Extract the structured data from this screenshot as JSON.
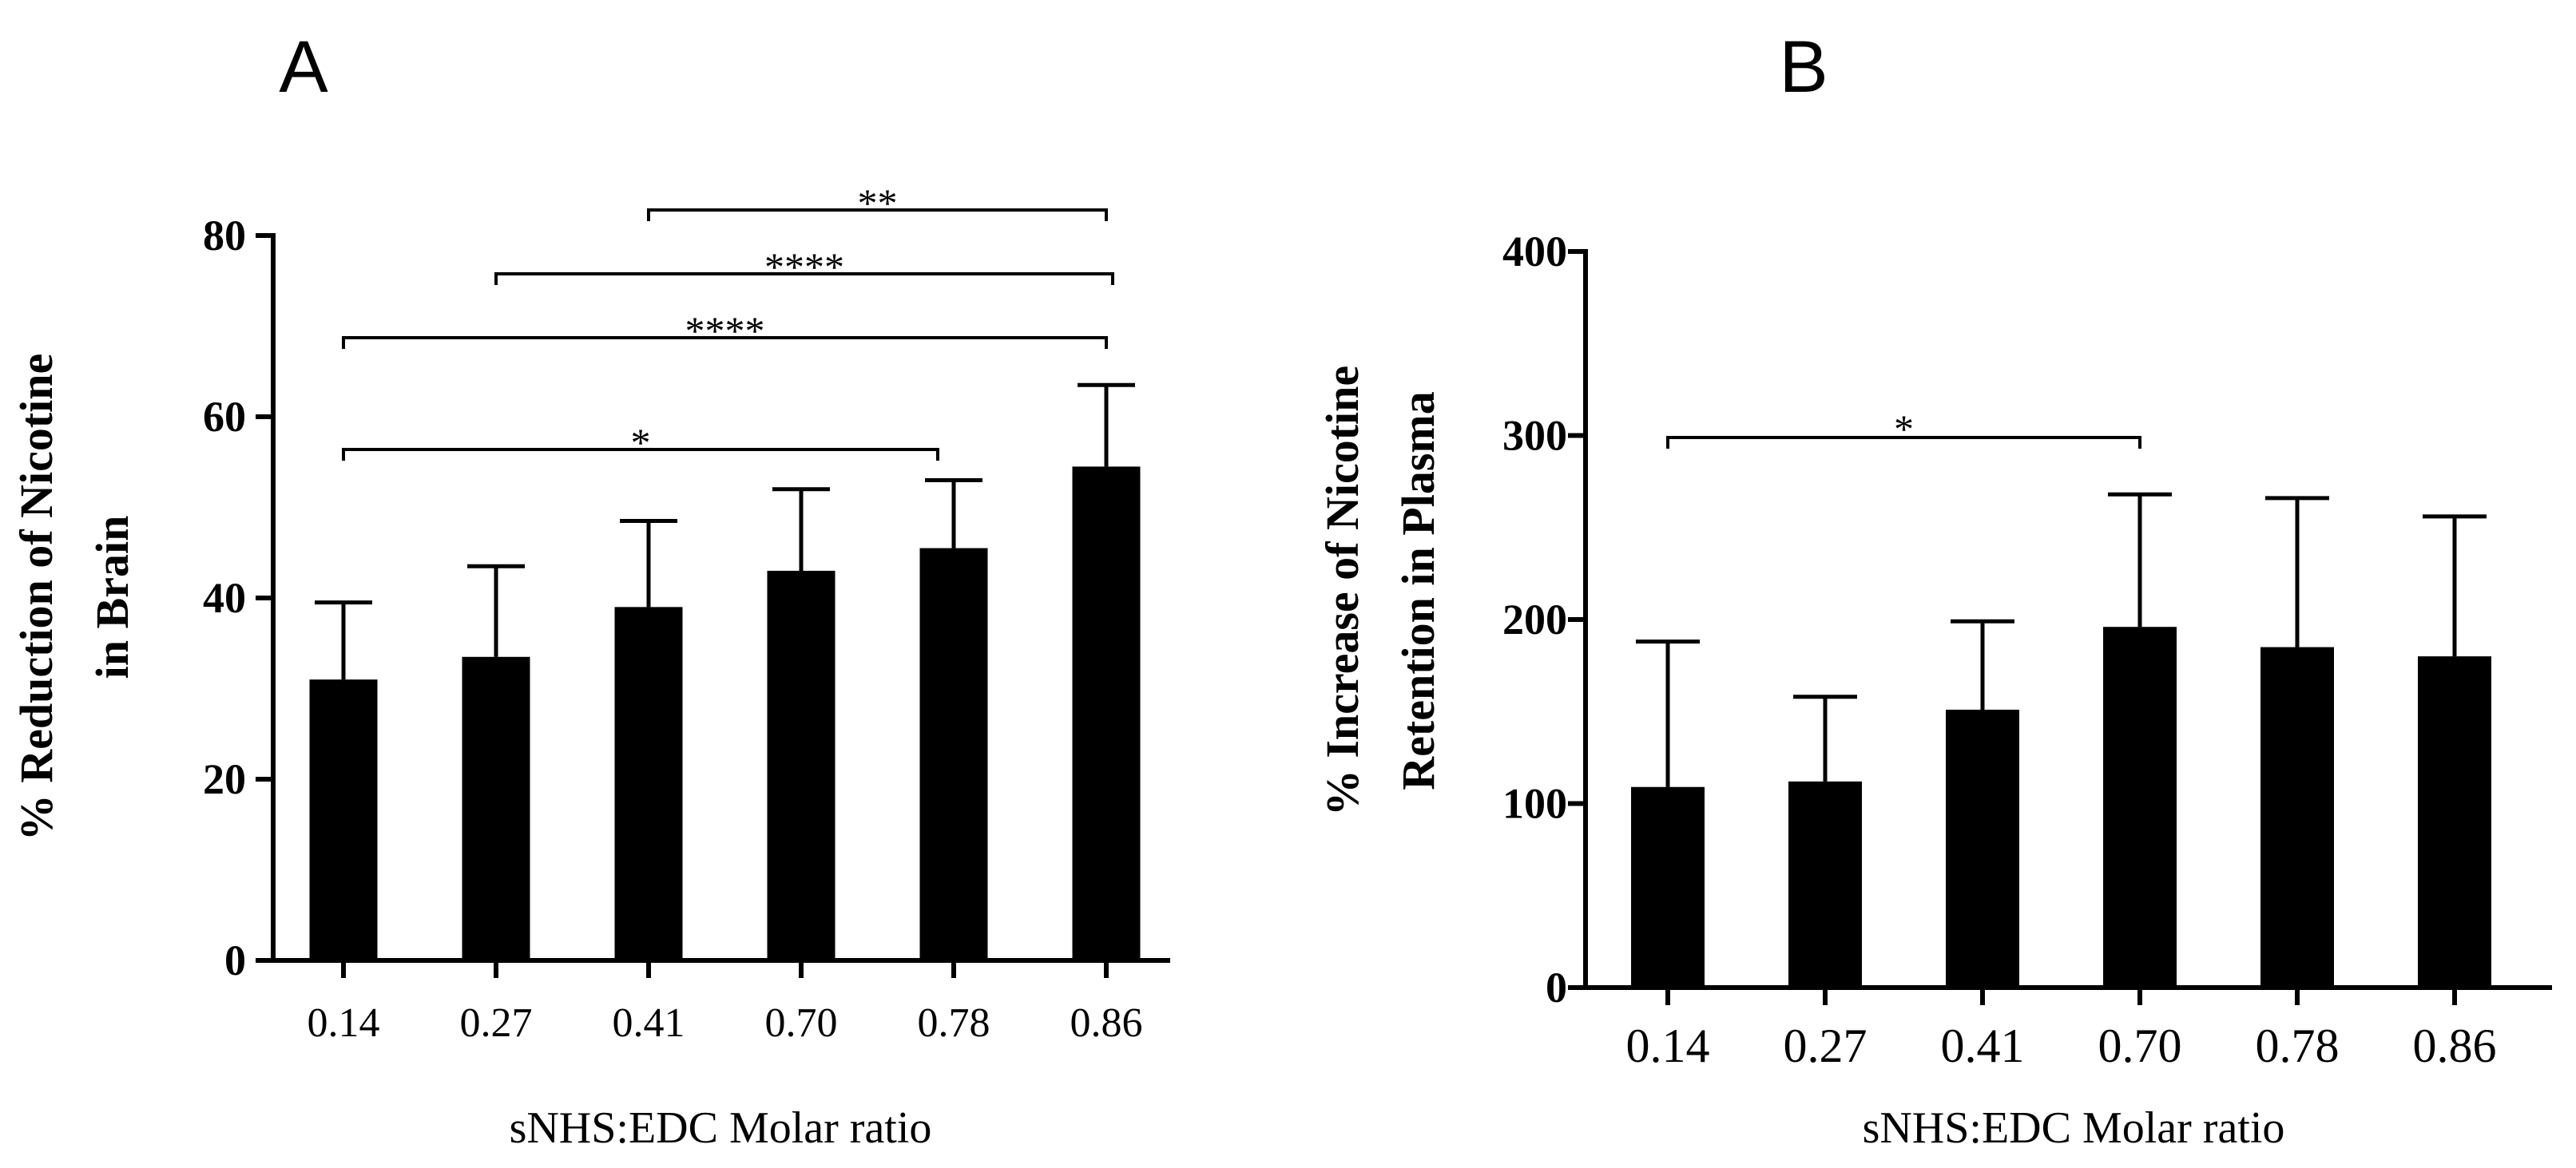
{
  "chart_data": [
    {
      "id": "A",
      "type": "bar",
      "panel_label": "A",
      "title": "",
      "ylabel_lines": [
        "% Reduction of Nicotine",
        "in Brain"
      ],
      "xlabel": "sNHS:EDC Molar ratio",
      "categories": [
        "0.14",
        "0.27",
        "0.41",
        "0.70",
        "0.78",
        "0.86"
      ],
      "values": [
        31,
        33.5,
        39,
        43,
        45.5,
        54.5
      ],
      "error_upper": [
        8.5,
        10,
        9.5,
        9,
        7.5,
        9
      ],
      "ylim": [
        0,
        80
      ],
      "yticks": [
        0,
        20,
        40,
        60,
        80
      ],
      "ytick_labels": [
        "0",
        "20",
        "40",
        "60",
        "80"
      ],
      "grid": false,
      "significance": [
        {
          "from": "0.41",
          "to": "0.86",
          "label": "**"
        },
        {
          "from": "0.27",
          "to": "0.86",
          "label": "****"
        },
        {
          "from": "0.14",
          "to": "0.86",
          "label": "****"
        },
        {
          "from": "0.14",
          "to": "0.78",
          "label": "*"
        }
      ]
    },
    {
      "id": "B",
      "type": "bar",
      "panel_label": "B",
      "title": "",
      "ylabel_lines": [
        "% Increase of Nicotine",
        "Retention in Plasma"
      ],
      "xlabel": "sNHS:EDC Molar ratio",
      "categories": [
        "0.14",
        "0.27",
        "0.41",
        "0.70",
        "0.78",
        "0.86"
      ],
      "values": [
        109,
        112,
        151,
        196,
        185,
        180
      ],
      "error_upper": [
        79,
        46,
        48,
        72,
        81,
        76
      ],
      "ylim": [
        0,
        400
      ],
      "yticks": [
        0,
        100,
        200,
        300,
        400
      ],
      "ytick_labels": [
        "0",
        "100",
        "200",
        "300",
        "400"
      ],
      "grid": false,
      "significance": [
        {
          "from": "0.14",
          "to": "0.70",
          "label": "*"
        }
      ]
    }
  ],
  "colors": {
    "bar": "#000000",
    "axis": "#000000",
    "text": "#000000"
  }
}
